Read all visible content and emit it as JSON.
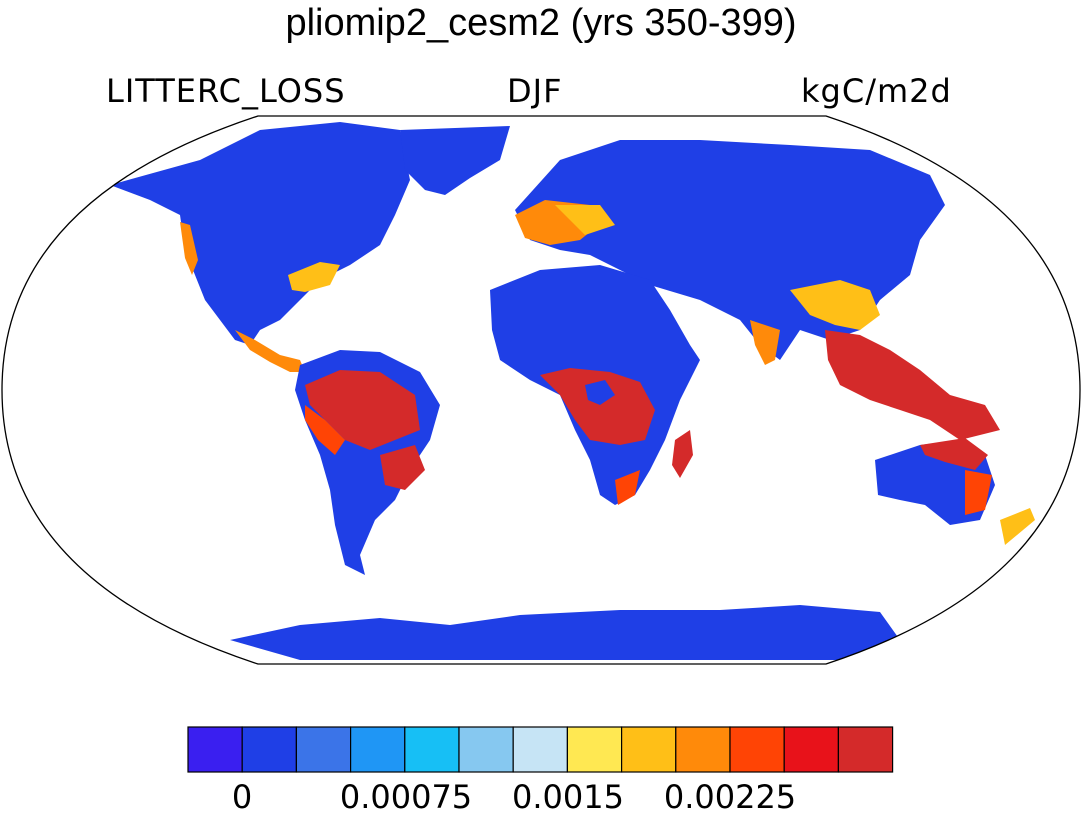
{
  "title": "pliomip2_cesm2 (yrs 350-399)",
  "variable": "LITTERC_LOSS",
  "season": "DJF",
  "units": "kgC/m2d",
  "colorbar": {
    "colors": [
      "#3a1ff0",
      "#1f3fe6",
      "#3b74e8",
      "#1f96f5",
      "#17bff5",
      "#86c8f0",
      "#c6e4f5",
      "#ffe852",
      "#ffbf17",
      "#ff8a0a",
      "#ff4405",
      "#e8121a",
      "#d42a2a"
    ],
    "tick_labels": [
      "0",
      "0.00075",
      "0.0015",
      "0.00225"
    ]
  },
  "chart_data": {
    "type": "heatmap",
    "projection": "Robinson",
    "field": "LITTERC_LOSS",
    "season": "DJF",
    "units": "kgC/m2d",
    "levels": [
      0,
      0.00025,
      0.0005,
      0.00075,
      0.001,
      0.00125,
      0.0015,
      0.00175,
      0.002,
      0.00225,
      0.0025,
      0.00275
    ],
    "regions": [
      {
        "name": "Amazon basin",
        "level": "high"
      },
      {
        "name": "Central Africa (Congo)",
        "level": "high"
      },
      {
        "name": "Maritime Southeast Asia",
        "level": "high"
      },
      {
        "name": "Northern Australia",
        "level": "high"
      },
      {
        "name": "Western Europe",
        "level": "medium-high"
      },
      {
        "name": "Southeastern United States",
        "level": "medium"
      },
      {
        "name": "North Africa / Sahara",
        "level": "low"
      },
      {
        "name": "Siberia",
        "level": "low"
      },
      {
        "name": "Canada",
        "level": "low"
      },
      {
        "name": "Antarctica",
        "level": "low"
      }
    ]
  }
}
